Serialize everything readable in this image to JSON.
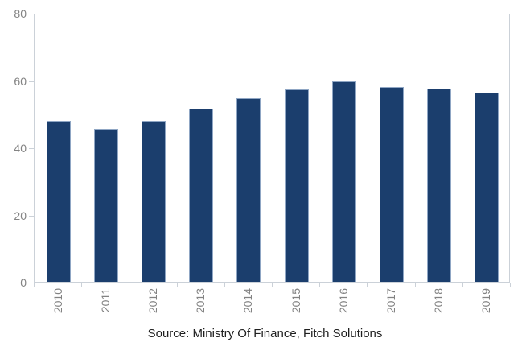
{
  "source_label": "Source: Ministry Of Finance, Fitch Solutions",
  "colors": {
    "bar_fill": "#1b3e6d",
    "bar_border": "#8fa6c4",
    "axis_line": "#cbd1d8",
    "tick_label": "#838383",
    "source_text": "#1f1f1f",
    "background": "#ffffff"
  },
  "chart_data": {
    "type": "bar",
    "categories": [
      "2010",
      "2011",
      "2012",
      "2013",
      "2014",
      "2015",
      "2016",
      "2017",
      "2018",
      "2019"
    ],
    "values": [
      48.0,
      45.5,
      48.0,
      51.5,
      54.5,
      57.2,
      59.6,
      58.0,
      57.4,
      56.3
    ],
    "title": "",
    "xlabel": "",
    "ylabel": "",
    "ylim": [
      0,
      80
    ],
    "yticks": [
      0,
      20,
      40,
      60,
      80
    ],
    "grid": false,
    "legend": false,
    "bar_width_fraction": 0.5,
    "x_tick_position": "between-categories",
    "x_label_rotation": -90,
    "source": "Source: Ministry Of Finance, Fitch Solutions"
  }
}
